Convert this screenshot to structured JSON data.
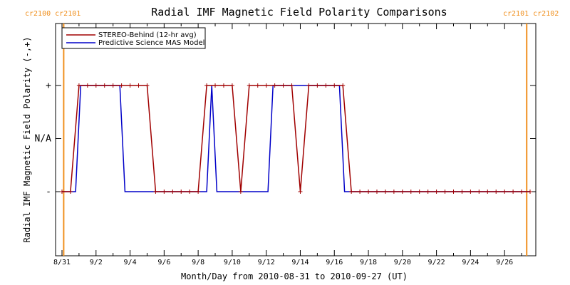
{
  "chart_data": {
    "type": "line",
    "title": "Radial IMF Magnetic Field Polarity Comparisons",
    "xlabel": "Month/Day from 2010-08-31 to 2010-09-27 (UT)",
    "ylabel": "Radial IMF Magnetic Field Polarity (-,+)",
    "x_range_days": [
      0,
      27.5
    ],
    "y_range": [
      -2,
      2
    ],
    "x_ticks": [
      {
        "day": 0,
        "label": "8/31"
      },
      {
        "day": 2,
        "label": "9/2"
      },
      {
        "day": 4,
        "label": "9/4"
      },
      {
        "day": 6,
        "label": "9/6"
      },
      {
        "day": 8,
        "label": "9/8"
      },
      {
        "day": 10,
        "label": "9/10"
      },
      {
        "day": 12,
        "label": "9/12"
      },
      {
        "day": 14,
        "label": "9/14"
      },
      {
        "day": 16,
        "label": "9/16"
      },
      {
        "day": 18,
        "label": "9/18"
      },
      {
        "day": 20,
        "label": "9/20"
      },
      {
        "day": 22,
        "label": "9/22"
      },
      {
        "day": 24,
        "label": "9/24"
      },
      {
        "day": 26,
        "label": "9/26"
      }
    ],
    "y_ticks": [
      {
        "value": 1,
        "label": "+"
      },
      {
        "value": 0,
        "label": "N/A"
      },
      {
        "value": -1,
        "label": "-"
      }
    ],
    "carrington_markers": [
      {
        "day": 0.1,
        "label": "cr2100 cr2101"
      },
      {
        "day": 27.3,
        "label": "cr2101 cr2102"
      }
    ],
    "legend_position": "top-left",
    "series": [
      {
        "name": "STEREO-Behind (12-hr avg)",
        "color": "#a00000",
        "markers": true,
        "x": [
          0,
          0.5,
          1.0,
          1.5,
          2.0,
          2.5,
          3.0,
          3.5,
          4.0,
          4.5,
          5.0,
          5.5,
          6.0,
          6.5,
          7.0,
          7.5,
          8.0,
          8.5,
          9.0,
          9.5,
          10.0,
          10.5,
          11.0,
          11.5,
          12.0,
          12.5,
          13.0,
          13.5,
          14.0,
          14.5,
          15.0,
          15.5,
          16.0,
          16.5,
          17.0,
          17.5,
          18.0,
          18.5,
          19.0,
          19.5,
          20.0,
          20.5,
          21.0,
          21.5,
          22.0,
          22.5,
          23.0,
          23.5,
          24.0,
          24.5,
          25.0,
          25.5,
          26.0,
          26.5,
          27.0,
          27.5
        ],
        "y": [
          -1,
          -1,
          1,
          1,
          1,
          1,
          1,
          1,
          1,
          1,
          1,
          -1,
          -1,
          -1,
          -1,
          -1,
          -1,
          1,
          1,
          1,
          1,
          -1,
          1,
          1,
          1,
          1,
          1,
          1,
          -1,
          1,
          1,
          1,
          1,
          1,
          -1,
          -1,
          -1,
          -1,
          -1,
          -1,
          -1,
          -1,
          -1,
          -1,
          -1,
          -1,
          -1,
          -1,
          -1,
          -1,
          -1,
          -1,
          -1,
          -1,
          -1,
          -1
        ]
      },
      {
        "name": "Predictive Science MAS Model",
        "color": "#0000c8",
        "markers": false,
        "x": [
          0,
          0.8,
          1.1,
          3.4,
          3.7,
          8.5,
          8.8,
          9.1,
          12.1,
          12.4,
          16.3,
          16.6,
          27.5
        ],
        "y": [
          -1,
          -1,
          1,
          1,
          -1,
          -1,
          1,
          -1,
          -1,
          1,
          1,
          -1,
          -1
        ]
      }
    ]
  }
}
